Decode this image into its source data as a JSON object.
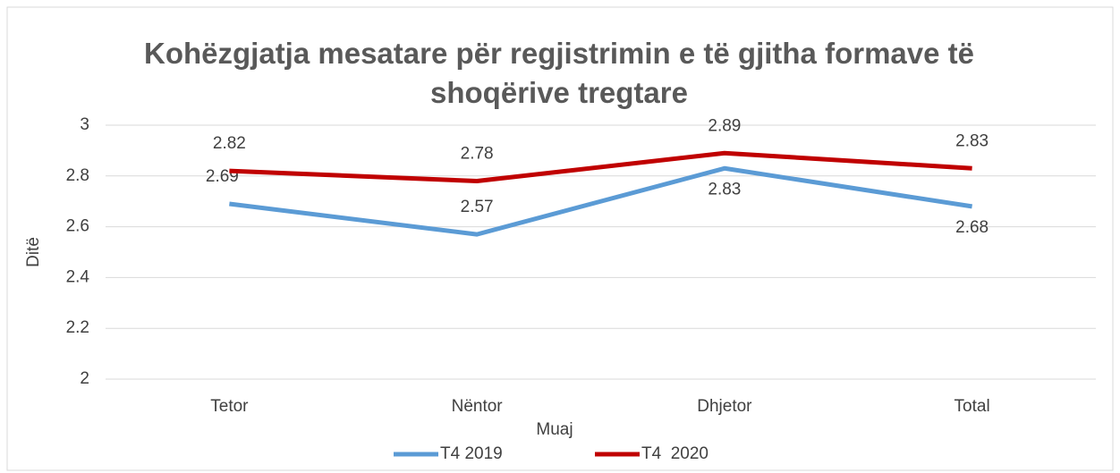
{
  "chart_data": {
    "type": "line",
    "title": "Kohëzgjatja mesatare për regjistrimin e të gjitha formave të shoqërive tregtare",
    "x_label": "Muaj",
    "y_label": "Ditë",
    "categories": [
      "Tetor",
      "Nëntor",
      "Dhjetor",
      "Total"
    ],
    "series": [
      {
        "name": "T4 2019",
        "color": "#5b9bd5",
        "values": [
          2.69,
          2.57,
          2.83,
          2.68
        ]
      },
      {
        "name": "T4  2020",
        "color": "#c00000",
        "values": [
          2.82,
          2.78,
          2.89,
          2.83
        ]
      }
    ],
    "ylim": [
      2,
      3
    ],
    "yticks": [
      2,
      2.2,
      2.4,
      2.6,
      2.8,
      3
    ],
    "grid": true,
    "legend": "bottom"
  }
}
